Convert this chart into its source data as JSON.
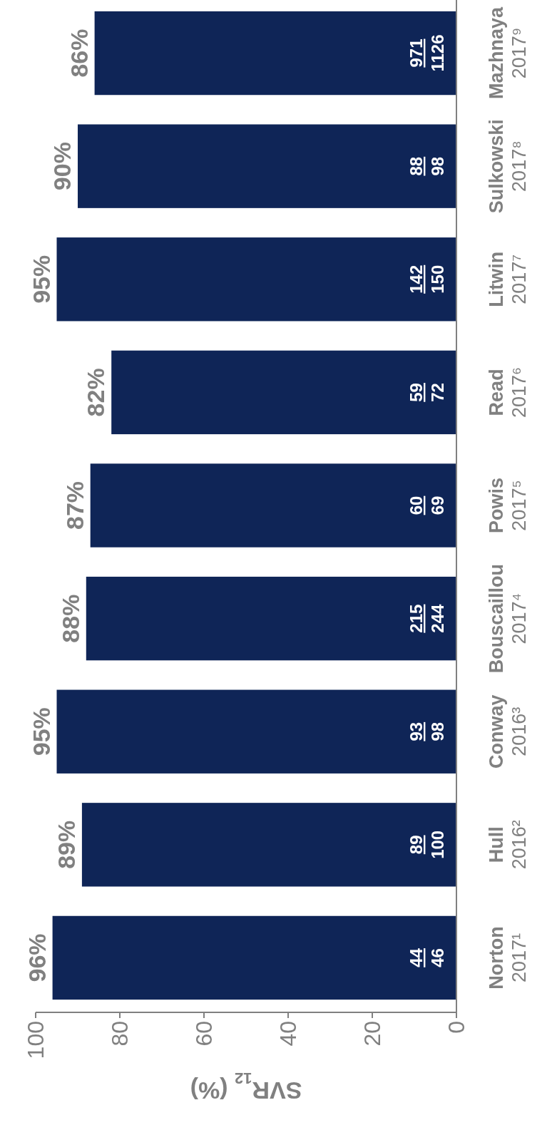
{
  "chart_data": {
    "type": "bar",
    "orientation": "horizontal",
    "xlabel": "SVR$_{12}$ (%)",
    "categories": [
      "Mazhnaya 2017⁹",
      "Sulkowski 2017⁸",
      "Litwin 2017⁷",
      "Read 2017⁶",
      "Powis 2017⁵",
      "Bouscaillou 2017⁴",
      "Conway 2016³",
      "Hull 2016²",
      "Norton 2017¹"
    ],
    "values": [
      86,
      90,
      95,
      82,
      87,
      88,
      95,
      89,
      96
    ],
    "value_labels": [
      "86%",
      "90%",
      "95%",
      "82%",
      "87%",
      "88%",
      "95%",
      "89%",
      "96%"
    ],
    "color": "#0f2557",
    "xlim": [
      100,
      0
    ],
    "xticks": [
      0,
      20,
      40,
      60,
      80,
      100
    ],
    "grid": false,
    "annotations": [
      "971",
      "1126",
      "88",
      "98",
      "142",
      "150",
      "59",
      "72",
      "60",
      "69",
      "215",
      "244",
      "93",
      "98",
      "89",
      "100",
      "44",
      "46"
    ]
  }
}
